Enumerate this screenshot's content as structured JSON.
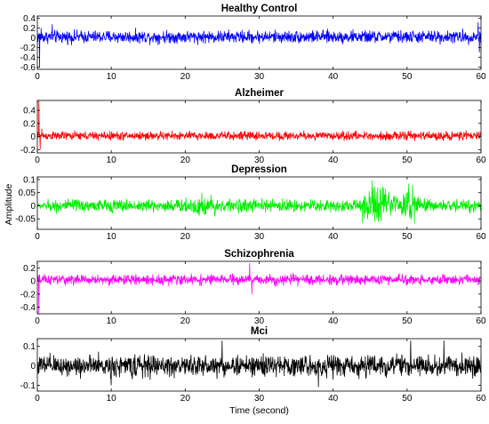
{
  "chart_data": [
    {
      "type": "line",
      "title": "Healthy Control",
      "color": "#0000ff",
      "x_range": [
        0,
        60
      ],
      "ylim": [
        -0.65,
        0.45
      ],
      "yticks": [
        -0.6,
        -0.4,
        -0.2,
        0,
        0.2,
        0.4
      ],
      "ytick_labels": [
        "-0.6",
        "-0.4",
        "-0.2",
        "0",
        "0.2",
        "0.4"
      ],
      "xticks": [
        0,
        10,
        20,
        30,
        40,
        50,
        60
      ],
      "xtick_labels": [
        "0",
        "10",
        "20",
        "30",
        "40",
        "50",
        "60"
      ],
      "baseline": 0.02,
      "typical_amplitude": 0.12,
      "peak_points": [
        {
          "x": 0.3,
          "y": -0.62
        },
        {
          "x": 0.5,
          "y": 0.2
        },
        {
          "x": 2.0,
          "y": 0.28
        },
        {
          "x": 59.6,
          "y": 0.32
        },
        {
          "x": 59.8,
          "y": -0.3
        }
      ]
    },
    {
      "type": "line",
      "title": "Alzheimer",
      "color": "#ff0000",
      "x_range": [
        0,
        60
      ],
      "ylim": [
        -0.25,
        0.55
      ],
      "yticks": [
        -0.2,
        0,
        0.2,
        0.4
      ],
      "ytick_labels": [
        "-0.2",
        "0",
        "0.2",
        "0.4"
      ],
      "xticks": [
        0,
        10,
        20,
        30,
        40,
        50,
        60
      ],
      "xtick_labels": [
        "0",
        "10",
        "20",
        "30",
        "40",
        "50",
        "60"
      ],
      "baseline": 0.01,
      "typical_amplitude": 0.06,
      "peak_points": [
        {
          "x": 0.2,
          "y": 0.55
        },
        {
          "x": 0.4,
          "y": -0.2
        },
        {
          "x": 0.6,
          "y": 0.12
        }
      ]
    },
    {
      "type": "line",
      "title": "Depression",
      "color": "#00ee00",
      "x_range": [
        0,
        60
      ],
      "ylim": [
        -0.09,
        0.11
      ],
      "yticks": [
        -0.05,
        0,
        0.05,
        0.1
      ],
      "ytick_labels": [
        "-0.05",
        "0",
        "0.05",
        "0.1"
      ],
      "xticks": [
        0,
        10,
        20,
        30,
        40,
        50,
        60
      ],
      "xtick_labels": [
        "0",
        "10",
        "20",
        "30",
        "40",
        "50",
        "60"
      ],
      "baseline": 0.0,
      "typical_amplitude": 0.022,
      "bursts": [
        {
          "center": 46,
          "width": 2.5,
          "amplitude": 0.085
        },
        {
          "center": 50.5,
          "width": 1.2,
          "amplitude": 0.09
        },
        {
          "center": 22,
          "width": 3,
          "amplitude": 0.045
        }
      ]
    },
    {
      "type": "line",
      "title": "Schizophrenia",
      "color": "#ff00ff",
      "x_range": [
        0,
        60
      ],
      "ylim": [
        -0.5,
        0.3
      ],
      "yticks": [
        -0.4,
        -0.2,
        0,
        0.2
      ],
      "ytick_labels": [
        "-0.4",
        "-0.2",
        "0",
        "0.2"
      ],
      "xticks": [
        0,
        10,
        20,
        30,
        40,
        50,
        60
      ],
      "xtick_labels": [
        "0",
        "10",
        "20",
        "30",
        "40",
        "50",
        "60"
      ],
      "baseline": 0.02,
      "typical_amplitude": 0.07,
      "peak_points": [
        {
          "x": 0.2,
          "y": -0.5
        },
        {
          "x": 28.7,
          "y": 0.27
        },
        {
          "x": 29.0,
          "y": -0.2
        }
      ]
    },
    {
      "type": "line",
      "title": "Mci",
      "color": "#000000",
      "x_range": [
        0,
        60
      ],
      "ylim": [
        -0.13,
        0.14
      ],
      "yticks": [
        -0.1,
        0,
        0.1
      ],
      "ytick_labels": [
        "-0.1",
        "0",
        "0.1"
      ],
      "xticks": [
        0,
        10,
        20,
        30,
        40,
        50,
        60
      ],
      "xtick_labels": [
        "0",
        "10",
        "20",
        "30",
        "40",
        "50",
        "60"
      ],
      "xlabel": "Time (second)",
      "baseline": 0.0,
      "typical_amplitude": 0.05,
      "peak_points": [
        {
          "x": 25,
          "y": 0.13
        },
        {
          "x": 50.5,
          "y": 0.13
        },
        {
          "x": 55,
          "y": 0.13
        },
        {
          "x": 38,
          "y": -0.11
        },
        {
          "x": 10,
          "y": -0.1
        }
      ]
    }
  ],
  "ylabel": "Amplitude"
}
